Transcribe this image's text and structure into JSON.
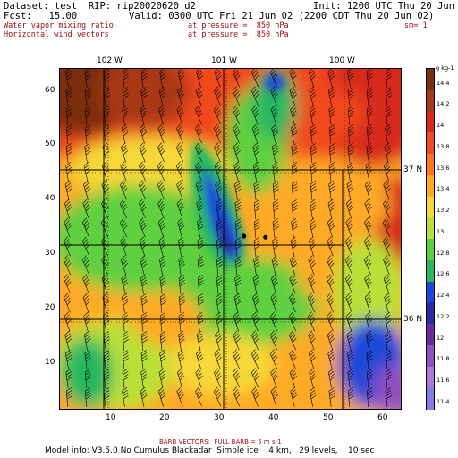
{
  "header": {
    "line1_left": "Dataset: test  RIP: rip20020620 d2",
    "line1_right": "Init: 1200 UTC Thu 20 Jun 02",
    "line2_left": "Fcst:   15.00",
    "line2_right": "Valid: 0300 UTC Fri 21 Jun 02 (2200 CDT Thu 20 Jun 02)",
    "field1_name": "Water vapor mixing ratio",
    "field1_level": "at pressure =  850 hPa",
    "field1_extra": "sm= 1",
    "field2_name": "Horizontal wind vectors",
    "field2_level": "at pressure =  850 hPa"
  },
  "longitude_labels": [
    "102 W",
    "101 W",
    "100 W"
  ],
  "latitude_labels": [
    "37 N",
    "36 N"
  ],
  "x_ticks": [
    "10",
    "20",
    "30",
    "40",
    "50",
    "60"
  ],
  "y_ticks": [
    "60",
    "50",
    "40",
    "30",
    "20",
    "10"
  ],
  "colorbar": {
    "unit": "g kg-1",
    "levels": [
      "14.4",
      "14.2",
      "14",
      "13.8",
      "13.6",
      "13.4",
      "13.2",
      "13",
      "12.8",
      "12.6",
      "12.4",
      "12.2",
      "12",
      "11.8",
      "11.6",
      "11.4"
    ],
    "colors": [
      "#7b2e10",
      "#a83818",
      "#d82a1a",
      "#f04a1e",
      "#ff7820",
      "#ffaa25",
      "#f6d838",
      "#b8e038",
      "#5ed040",
      "#28b860",
      "#1a48d8",
      "#2a2aa8",
      "#6a2aa0",
      "#9050c0",
      "#b078d8",
      "#8080e8"
    ]
  },
  "footer": {
    "barb_note": "BARB VECTORS:  FULL BARB = 5 m s-1",
    "model_info": "Model info: V3.5.0 No Cumulus Blackadar  Simple ice    4 km,   29 levels,    10 sec"
  },
  "map": {
    "grid_x_range": [
      1,
      64
    ],
    "grid_y_range": [
      1,
      64
    ],
    "markers": [
      {
        "x": 35,
        "y": 33
      },
      {
        "x": 39,
        "y": 32.8
      }
    ]
  }
}
